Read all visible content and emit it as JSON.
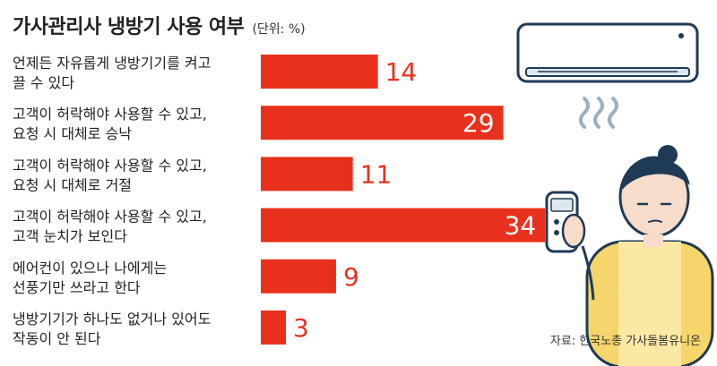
{
  "chart_data": {
    "type": "bar",
    "orientation": "horizontal",
    "title": "가사관리사 냉방기 사용 여부",
    "unit_label": "(단위: %)",
    "categories": [
      [
        "언제든 자유롭게 냉방기기를 켜고",
        "끌 수 있다"
      ],
      [
        "고객이 허락해야 사용할 수 있고,",
        "요청 시 대체로 승낙"
      ],
      [
        "고객이 허락해야 사용할 수 있고,",
        "요청 시 대체로 거절"
      ],
      [
        "고객이 허락해야 사용할 수 있고,",
        "고객 눈치가 보인다"
      ],
      [
        "에어컨이 있으나 나에게는",
        "선풍기만 쓰라고 한다"
      ],
      [
        "냉방기기가 하나도 없거나 있어도",
        "작동이 안 된다"
      ]
    ],
    "values": [
      14,
      29,
      11,
      34,
      9,
      3
    ],
    "bar_color": "#e8311c",
    "source": "자료: 한국노총 가사돌봄유니온"
  }
}
